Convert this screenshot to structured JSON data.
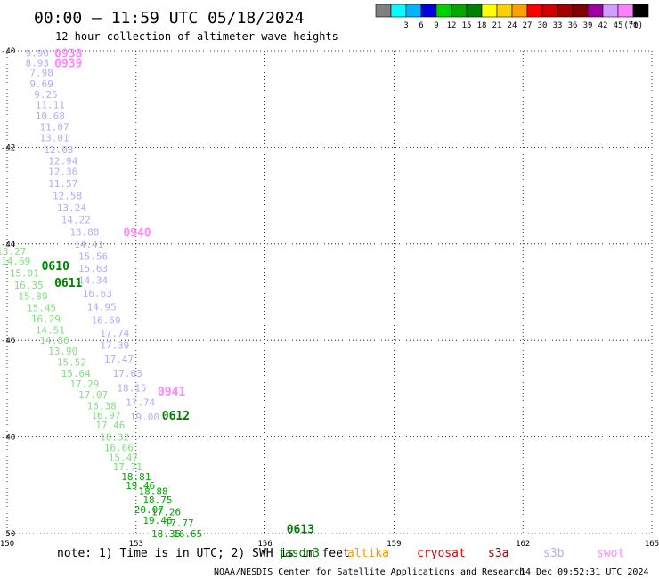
{
  "chart_data": {
    "type": "scatter",
    "title": "00:00 – 11:59 UTC 05/18/2024",
    "subtitle": "12 hour collection of altimeter wave heights",
    "x_ticks": [
      "150",
      "153",
      "156",
      "159",
      "162",
      "165"
    ],
    "y_ticks": [
      "-40",
      "-42",
      "-44",
      "-46",
      "-48",
      "-50"
    ],
    "xlim": [
      150,
      165
    ],
    "ylim": [
      -50,
      -40
    ],
    "grid": true,
    "legend": {
      "unit": "(ft)",
      "bins": [
        {
          "label": "",
          "color": "#808080"
        },
        {
          "label": "3",
          "color": "#00ffff"
        },
        {
          "label": "6",
          "color": "#00b4ff"
        },
        {
          "label": "9",
          "color": "#0000e0"
        },
        {
          "label": "12",
          "color": "#00d000"
        },
        {
          "label": "15",
          "color": "#00a800"
        },
        {
          "label": "18",
          "color": "#008000"
        },
        {
          "label": "21",
          "color": "#ffff00"
        },
        {
          "label": "24",
          "color": "#ffd000"
        },
        {
          "label": "27",
          "color": "#ffa000"
        },
        {
          "label": "30",
          "color": "#ff0000"
        },
        {
          "label": "33",
          "color": "#d00000"
        },
        {
          "label": "36",
          "color": "#a00000"
        },
        {
          "label": "39",
          "color": "#800000"
        },
        {
          "label": "42",
          "color": "#a000a0"
        },
        {
          "label": "45",
          "color": "#d0a0ff"
        },
        {
          "label": "70",
          "color": "#ff80ff"
        },
        {
          "label": "",
          "color": "#000000"
        }
      ]
    },
    "satellites": [
      {
        "name": "jason3",
        "color": "#008000"
      },
      {
        "name": "altika",
        "color": "#ff9900"
      },
      {
        "name": "cryosat",
        "color": "#e00000"
      },
      {
        "name": "s3a",
        "color": "#a00000"
      },
      {
        "name": "s3b",
        "color": "#b8a8ff"
      },
      {
        "name": "swot",
        "color": "#ff88ff"
      }
    ],
    "time_labels": [
      {
        "text": "0938",
        "x": 151.1,
        "y": -40.05,
        "color": "#ff88ff"
      },
      {
        "text": "0939",
        "x": 151.1,
        "y": -40.25,
        "color": "#ff88ff"
      },
      {
        "text": "0940",
        "x": 152.7,
        "y": -43.75,
        "color": "#ff88ff"
      },
      {
        "text": "0941",
        "x": 153.5,
        "y": -47.05,
        "color": "#ff88ff"
      },
      {
        "text": "0610",
        "x": 150.8,
        "y": -44.45,
        "color": "#008000"
      },
      {
        "text": "0611",
        "x": 151.1,
        "y": -44.8,
        "color": "#008000"
      },
      {
        "text": "0612",
        "x": 153.6,
        "y": -47.55,
        "color": "#008000"
      },
      {
        "text": "0613",
        "x": 156.5,
        "y": -49.9,
        "color": "#008000"
      }
    ],
    "series": [
      {
        "color": "#b8a8ff",
        "points": [
          {
            "x": 150.7,
            "y": -40.05,
            "v": "9.90"
          },
          {
            "x": 150.7,
            "y": -40.25,
            "v": "8.93"
          },
          {
            "x": 150.8,
            "y": -40.45,
            "v": "7.98"
          },
          {
            "x": 150.8,
            "y": -40.68,
            "v": "9.69"
          },
          {
            "x": 150.9,
            "y": -40.9,
            "v": "9.25"
          },
          {
            "x": 151.0,
            "y": -41.12,
            "v": "11.11"
          },
          {
            "x": 151.0,
            "y": -41.35,
            "v": "10.68"
          },
          {
            "x": 151.1,
            "y": -41.58,
            "v": "11.07"
          },
          {
            "x": 151.1,
            "y": -41.8,
            "v": "13.01"
          },
          {
            "x": 151.2,
            "y": -42.05,
            "v": "12.03"
          },
          {
            "x": 151.3,
            "y": -42.28,
            "v": "12.94"
          },
          {
            "x": 151.3,
            "y": -42.5,
            "v": "12.36"
          },
          {
            "x": 151.3,
            "y": -42.75,
            "v": "11.57"
          },
          {
            "x": 151.4,
            "y": -43.0,
            "v": "12.58"
          },
          {
            "x": 151.5,
            "y": -43.25,
            "v": "13.24"
          },
          {
            "x": 151.6,
            "y": -43.5,
            "v": "14.22"
          },
          {
            "x": 151.8,
            "y": -43.75,
            "v": "13.88"
          },
          {
            "x": 151.9,
            "y": -44.0,
            "v": "14.41"
          },
          {
            "x": 152.0,
            "y": -44.25,
            "v": "15.56"
          },
          {
            "x": 152.0,
            "y": -44.5,
            "v": "15.63"
          },
          {
            "x": 152.0,
            "y": -44.75,
            "v": "14.34"
          },
          {
            "x": 152.1,
            "y": -45.02,
            "v": "16.63"
          },
          {
            "x": 152.2,
            "y": -45.3,
            "v": "14.95"
          },
          {
            "x": 152.3,
            "y": -45.58,
            "v": "16.69"
          },
          {
            "x": 152.5,
            "y": -45.85,
            "v": "17.74"
          },
          {
            "x": 152.5,
            "y": -46.1,
            "v": "17.39"
          },
          {
            "x": 152.6,
            "y": -46.38,
            "v": "17.47"
          },
          {
            "x": 152.8,
            "y": -46.68,
            "v": "17.63"
          },
          {
            "x": 152.9,
            "y": -46.98,
            "v": "18.15"
          },
          {
            "x": 153.1,
            "y": -47.28,
            "v": "17.74"
          },
          {
            "x": 153.2,
            "y": -47.58,
            "v": "19.00"
          }
        ]
      },
      {
        "color": "#80e080",
        "points": [
          {
            "x": 150.1,
            "y": -44.15,
            "v": "13.27"
          },
          {
            "x": 150.2,
            "y": -44.35,
            "v": "14.69"
          },
          {
            "x": 150.4,
            "y": -44.6,
            "v": "15.01"
          },
          {
            "x": 150.5,
            "y": -44.85,
            "v": "16.35"
          },
          {
            "x": 150.6,
            "y": -45.08,
            "v": "15.89"
          },
          {
            "x": 150.8,
            "y": -45.32,
            "v": "15.45"
          },
          {
            "x": 150.9,
            "y": -45.55,
            "v": "16.29"
          },
          {
            "x": 151.0,
            "y": -45.78,
            "v": "14.51"
          },
          {
            "x": 151.1,
            "y": -46.0,
            "v": "14.86"
          },
          {
            "x": 151.3,
            "y": -46.22,
            "v": "13.90"
          },
          {
            "x": 151.5,
            "y": -46.45,
            "v": "15.52"
          },
          {
            "x": 151.6,
            "y": -46.68,
            "v": "15.64"
          },
          {
            "x": 151.8,
            "y": -46.9,
            "v": "17.29"
          },
          {
            "x": 152.0,
            "y": -47.12,
            "v": "17.07"
          },
          {
            "x": 152.2,
            "y": -47.35,
            "v": "16.38"
          },
          {
            "x": 152.3,
            "y": -47.55,
            "v": "16.97"
          },
          {
            "x": 152.4,
            "y": -47.75,
            "v": "17.46"
          },
          {
            "x": 152.5,
            "y": -48.0,
            "v": "18.32"
          },
          {
            "x": 152.6,
            "y": -48.22,
            "v": "16.66"
          },
          {
            "x": 152.7,
            "y": -48.42,
            "v": "15.47"
          },
          {
            "x": 152.8,
            "y": -48.62,
            "v": "17.71"
          }
        ]
      },
      {
        "color": "#00a800",
        "points": [
          {
            "x": 153.0,
            "y": -48.82,
            "v": "18.81"
          },
          {
            "x": 153.1,
            "y": -49.0,
            "v": "19.46"
          },
          {
            "x": 153.4,
            "y": -49.12,
            "v": "18.88"
          },
          {
            "x": 153.5,
            "y": -49.3,
            "v": "18.75"
          },
          {
            "x": 153.3,
            "y": -49.5,
            "v": "20.07"
          },
          {
            "x": 153.5,
            "y": -49.72,
            "v": "19.46"
          },
          {
            "x": 153.7,
            "y": -49.55,
            "v": "17.26"
          },
          {
            "x": 154.0,
            "y": -49.78,
            "v": "17.77"
          },
          {
            "x": 154.2,
            "y": -50.0,
            "v": "16.65"
          },
          {
            "x": 153.7,
            "y": -50.0,
            "v": "18.35"
          }
        ]
      }
    ],
    "footnote": "note: 1) Time is in UTC; 2) SWH is in feet",
    "credit": "NOAA/NESDIS Center for Satellite Applications and Research",
    "timestamp": "14 Dec 09:52:31 UTC 2024"
  }
}
